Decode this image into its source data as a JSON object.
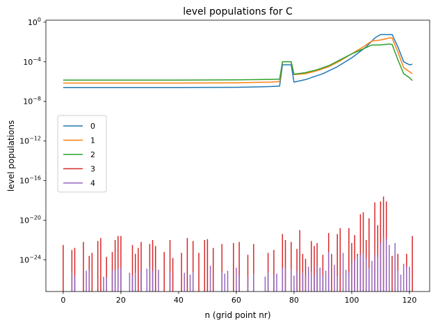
{
  "chart_data": {
    "type": "line",
    "title": "level populations for C",
    "xlabel": "n (grid point nr)",
    "ylabel": "level populations",
    "xlim": [
      -6,
      127
    ],
    "x_ticks": [
      0,
      20,
      40,
      60,
      80,
      100,
      120
    ],
    "x_tick_labels": [
      "0",
      "20",
      "40",
      "60",
      "80",
      "100",
      "120"
    ],
    "yscale": "log",
    "ylim_log10": [
      -27.2,
      0.2
    ],
    "y_ticks_log10": [
      0,
      -4,
      -8,
      -12,
      -16,
      -20,
      -24
    ],
    "y_tick_labels": [
      "10^0",
      "10^-4",
      "10^-8",
      "10^-12",
      "10^-16",
      "10^-20",
      "10^-24"
    ],
    "grid": false,
    "legend_position": "center-left",
    "series": [
      {
        "name": "0",
        "color": "#1f77b4",
        "points_log10": [
          [
            0,
            -6.6
          ],
          [
            20,
            -6.6
          ],
          [
            40,
            -6.6
          ],
          [
            60,
            -6.58
          ],
          [
            72,
            -6.5
          ],
          [
            75,
            -6.45
          ],
          [
            76,
            -4.3
          ],
          [
            79,
            -4.3
          ],
          [
            80,
            -6.05
          ],
          [
            84,
            -5.8
          ],
          [
            86,
            -5.6
          ],
          [
            90,
            -5.2
          ],
          [
            95,
            -4.5
          ],
          [
            100,
            -3.6
          ],
          [
            105,
            -2.5
          ],
          [
            108,
            -1.6
          ],
          [
            110,
            -1.25
          ],
          [
            114,
            -1.25
          ],
          [
            116,
            -2.5
          ],
          [
            118,
            -4.0
          ],
          [
            120,
            -4.3
          ],
          [
            121,
            -4.25
          ]
        ]
      },
      {
        "name": "1",
        "color": "#ff7f0e",
        "points_log10": [
          [
            0,
            -6.15
          ],
          [
            20,
            -6.15
          ],
          [
            40,
            -6.15
          ],
          [
            60,
            -6.12
          ],
          [
            72,
            -6.05
          ],
          [
            75,
            -6.0
          ],
          [
            76,
            -4.0
          ],
          [
            79,
            -4.0
          ],
          [
            80,
            -5.3
          ],
          [
            84,
            -5.2
          ],
          [
            88,
            -4.9
          ],
          [
            92,
            -4.5
          ],
          [
            96,
            -3.9
          ],
          [
            100,
            -3.2
          ],
          [
            104,
            -2.5
          ],
          [
            107,
            -1.9
          ],
          [
            110,
            -1.8
          ],
          [
            113,
            -1.6
          ],
          [
            114,
            -1.6
          ],
          [
            116,
            -3.0
          ],
          [
            118,
            -4.6
          ],
          [
            120,
            -5.0
          ],
          [
            121,
            -5.2
          ]
        ]
      },
      {
        "name": "2",
        "color": "#2ca02c",
        "points_log10": [
          [
            0,
            -5.85
          ],
          [
            20,
            -5.85
          ],
          [
            40,
            -5.85
          ],
          [
            60,
            -5.82
          ],
          [
            72,
            -5.78
          ],
          [
            75,
            -5.75
          ],
          [
            76,
            -4.0
          ],
          [
            79,
            -4.0
          ],
          [
            80,
            -5.25
          ],
          [
            84,
            -5.1
          ],
          [
            88,
            -4.8
          ],
          [
            92,
            -4.4
          ],
          [
            96,
            -3.8
          ],
          [
            100,
            -3.2
          ],
          [
            104,
            -2.7
          ],
          [
            107,
            -2.3
          ],
          [
            110,
            -2.3
          ],
          [
            113,
            -2.2
          ],
          [
            114,
            -2.25
          ],
          [
            116,
            -3.8
          ],
          [
            118,
            -5.2
          ],
          [
            120,
            -5.6
          ],
          [
            121,
            -5.9
          ]
        ]
      },
      {
        "name": "3",
        "color": "#d62728",
        "spike_base_log10": -27.2,
        "spikes": [
          [
            0,
            -22.5
          ],
          [
            3,
            -23.0
          ],
          [
            4,
            -22.8
          ],
          [
            7,
            -22.2
          ],
          [
            9,
            -23.6
          ],
          [
            10,
            -23.3
          ],
          [
            12,
            -22.1
          ],
          [
            13,
            -21.8
          ],
          [
            15,
            -23.7
          ],
          [
            17,
            -23.2
          ],
          [
            18,
            -22.0
          ],
          [
            19,
            -21.6
          ],
          [
            20,
            -21.6
          ],
          [
            24,
            -22.5
          ],
          [
            25,
            -23.4
          ],
          [
            26,
            -22.8
          ],
          [
            27,
            -22.2
          ],
          [
            30,
            -22.4
          ],
          [
            31,
            -22.0
          ],
          [
            32,
            -22.6
          ],
          [
            35,
            -23.2
          ],
          [
            37,
            -22.0
          ],
          [
            38,
            -23.8
          ],
          [
            41,
            -23.3
          ],
          [
            43,
            -21.8
          ],
          [
            45,
            -22.1
          ],
          [
            47,
            -23.3
          ],
          [
            49,
            -22.0
          ],
          [
            50,
            -21.9
          ],
          [
            52,
            -22.8
          ],
          [
            55,
            -22.4
          ],
          [
            59,
            -22.3
          ],
          [
            61,
            -22.2
          ],
          [
            64,
            -23.5
          ],
          [
            66,
            -22.4
          ],
          [
            71,
            -23.3
          ],
          [
            73,
            -23.0
          ],
          [
            76,
            -21.4
          ],
          [
            77,
            -22.0
          ],
          [
            79,
            -22.2
          ],
          [
            81,
            -22.9
          ],
          [
            82,
            -21.0
          ],
          [
            83,
            -23.4
          ],
          [
            84,
            -23.9
          ],
          [
            86,
            -22.1
          ],
          [
            87,
            -22.6
          ],
          [
            88,
            -22.3
          ],
          [
            90,
            -23.5
          ],
          [
            92,
            -21.3
          ],
          [
            93,
            -23.4
          ],
          [
            95,
            -21.4
          ],
          [
            96,
            -20.8
          ],
          [
            99,
            -20.8
          ],
          [
            100,
            -22.3
          ],
          [
            101,
            -21.5
          ],
          [
            102,
            -23.4
          ],
          [
            103,
            -19.4
          ],
          [
            104,
            -19.2
          ],
          [
            105,
            -22.0
          ],
          [
            106,
            -19.8
          ],
          [
            108,
            -18.2
          ],
          [
            109,
            -20.5
          ],
          [
            110,
            -18.1
          ],
          [
            111,
            -17.6
          ],
          [
            112,
            -18.1
          ],
          [
            114,
            -23.6
          ],
          [
            115,
            -23.5
          ],
          [
            116,
            -23.4
          ],
          [
            119,
            -23.4
          ],
          [
            121,
            -21.6
          ]
        ]
      },
      {
        "name": "4",
        "color": "#9467bd",
        "spike_base_log10": -27.2,
        "spikes": [
          [
            3,
            -25.2
          ],
          [
            4,
            -25.7
          ],
          [
            8,
            -25.1
          ],
          [
            9,
            -25.0
          ],
          [
            14,
            -25.7
          ],
          [
            15,
            -25.8
          ],
          [
            17,
            -25.1
          ],
          [
            18,
            -25.0
          ],
          [
            19,
            -24.9
          ],
          [
            20,
            -24.8
          ],
          [
            23,
            -25.3
          ],
          [
            24,
            -25.6
          ],
          [
            25,
            -25.3
          ],
          [
            27,
            -25.1
          ],
          [
            29,
            -24.9
          ],
          [
            30,
            -24.7
          ],
          [
            31,
            -25.1
          ],
          [
            33,
            -25.0
          ],
          [
            37,
            -25.3
          ],
          [
            42,
            -25.3
          ],
          [
            44,
            -25.5
          ],
          [
            45,
            -25.2
          ],
          [
            51,
            -24.6
          ],
          [
            55,
            -25.2
          ],
          [
            56,
            -25.4
          ],
          [
            57,
            -25.1
          ],
          [
            60,
            -24.8
          ],
          [
            61,
            -25.6
          ],
          [
            64,
            -25.7
          ],
          [
            66,
            -25.4
          ],
          [
            70,
            -25.7
          ],
          [
            71,
            -25.2
          ],
          [
            73,
            -25.5
          ],
          [
            74,
            -25.4
          ],
          [
            76,
            -24.8
          ],
          [
            77,
            -24.7
          ],
          [
            79,
            -24.9
          ],
          [
            80,
            -25.6
          ],
          [
            81,
            -25.1
          ],
          [
            83,
            -25.3
          ],
          [
            84,
            -25.6
          ],
          [
            85,
            -24.7
          ],
          [
            86,
            -25.2
          ],
          [
            87,
            -25.6
          ],
          [
            88,
            -24.6
          ],
          [
            89,
            -24.8
          ],
          [
            90,
            -25.6
          ],
          [
            91,
            -25.1
          ],
          [
            92,
            -23.2
          ],
          [
            94,
            -24.5
          ],
          [
            95,
            -25.6
          ],
          [
            97,
            -23.3
          ],
          [
            98,
            -25.0
          ],
          [
            99,
            -25.3
          ],
          [
            100,
            -24.3
          ],
          [
            101,
            -24.0
          ],
          [
            102,
            -23.6
          ],
          [
            103,
            -23.5
          ],
          [
            104,
            -23.3
          ],
          [
            105,
            -23.8
          ],
          [
            106,
            -24.8
          ],
          [
            107,
            -24.1
          ],
          [
            108,
            -23.5
          ],
          [
            109,
            -23.7
          ],
          [
            110,
            -22.3
          ],
          [
            111,
            -21.7
          ],
          [
            112,
            -21.9
          ],
          [
            113,
            -22.5
          ],
          [
            115,
            -22.3
          ],
          [
            116,
            -25.1
          ],
          [
            117,
            -25.5
          ],
          [
            118,
            -24.4
          ],
          [
            119,
            -24.7
          ],
          [
            120,
            -24.7
          ]
        ]
      }
    ]
  }
}
